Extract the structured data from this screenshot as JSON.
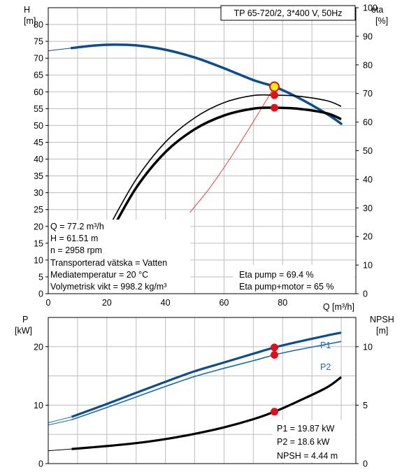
{
  "title": "TP 65-720/2, 3*400 V, 50Hz",
  "top_axes": {
    "left_label": "H",
    "left_unit": "[m]",
    "right_label": "eta",
    "right_unit": "[%]",
    "x_label": "Q [m³/h]"
  },
  "bottom_axes": {
    "left_label": "P",
    "left_unit": "[kW]",
    "right_label": "NPSH",
    "right_unit": "[m]"
  },
  "operating_point_info": [
    "Q = 77.2 m³/h",
    "H = 61.51 m",
    "n = 2958 rpm",
    "Transporterad vätska = Vatten",
    "Mediatemperatur = 20 °C",
    "Volymetrisk vikt = 998.2 kg/m³"
  ],
  "eta_info": [
    "Eta pump = 69.4 %",
    "Eta pump+motor = 65 %"
  ],
  "power_info": [
    "P1 = 19.87 kW",
    "P2 = 18.6 kW",
    "NPSH = 4.44 m"
  ],
  "colors": {
    "head": "#0d4d8c",
    "power": "#1a6aa8",
    "marker": "#e0101a",
    "system": "#e8403a",
    "grid": "#bdbdbd"
  },
  "chart_data": [
    {
      "type": "line",
      "title": "",
      "xlabel": "Q [m³/h]",
      "ylabel": "H [m]",
      "y2label": "eta [%]",
      "xlim": [
        0,
        105
      ],
      "ylim": [
        0,
        85
      ],
      "y2lim": [
        0,
        100
      ],
      "x_ticks": [
        0,
        20,
        40,
        60,
        80
      ],
      "y_ticks": [
        0,
        5,
        10,
        15,
        20,
        25,
        30,
        35,
        40,
        45,
        50,
        55,
        60,
        65,
        70,
        75,
        80
      ],
      "y2_ticks": [
        0,
        10,
        20,
        30,
        40,
        50,
        60,
        70,
        80,
        90,
        100
      ],
      "grid": true,
      "series": [
        {
          "name": "H",
          "axis": "left",
          "x": [
            0,
            8,
            15,
            22,
            30,
            40,
            50,
            60,
            70,
            77.2,
            85,
            95,
            100
          ],
          "y": [
            72.2,
            73.0,
            73.7,
            74.0,
            73.8,
            72.5,
            70.2,
            67.0,
            63.5,
            61.51,
            58.4,
            53.5,
            50.5
          ]
        },
        {
          "name": "eta pump",
          "axis": "right",
          "x": [
            20,
            30,
            40,
            50,
            60,
            70,
            77.2,
            85,
            95,
            100
          ],
          "y": [
            22,
            40,
            53,
            61.5,
            66.8,
            69.3,
            69.4,
            69.1,
            67.5,
            65.5
          ]
        },
        {
          "name": "eta pump+motor",
          "axis": "right",
          "x": [
            20,
            30,
            40,
            50,
            60,
            70,
            77.2,
            85,
            95,
            100
          ],
          "y": [
            19,
            37,
            49.5,
            57.5,
            62.3,
            64.7,
            65,
            64.7,
            63.1,
            61.0
          ]
        },
        {
          "name": "system curve",
          "axis": "left",
          "x": [
            48.3,
            55,
            62,
            70,
            77.2
          ],
          "y": [
            24.1,
            31.3,
            40.1,
            51.1,
            61.51
          ]
        }
      ],
      "operating_point": {
        "x": 77.2,
        "H": 61.51,
        "eta_pump": 69.4,
        "eta_pump_motor": 65
      }
    },
    {
      "type": "line",
      "title": "",
      "xlabel": "Q [m³/h]",
      "ylabel": "P [kW]",
      "y2label": "NPSH [m]",
      "xlim": [
        0,
        105
      ],
      "ylim": [
        0,
        25
      ],
      "y2lim": [
        0,
        12.5
      ],
      "y_ticks": [
        0,
        10,
        20
      ],
      "y2_ticks": [
        0,
        5,
        10
      ],
      "grid": true,
      "series": [
        {
          "name": "P1",
          "axis": "left",
          "x": [
            0,
            8,
            20,
            30,
            40,
            50,
            60,
            70,
            77.2,
            85,
            95,
            100
          ],
          "y": [
            7.0,
            8.0,
            10.2,
            12.1,
            14.0,
            15.8,
            17.3,
            18.8,
            19.87,
            20.8,
            21.9,
            22.4
          ]
        },
        {
          "name": "P2",
          "axis": "left",
          "x": [
            0,
            8,
            20,
            30,
            40,
            50,
            60,
            70,
            77.2,
            85,
            95,
            100
          ],
          "y": [
            6.6,
            7.5,
            9.6,
            11.4,
            13.2,
            14.9,
            16.3,
            17.6,
            18.6,
            19.45,
            20.4,
            20.9
          ]
        },
        {
          "name": "NPSH",
          "axis": "right",
          "x": [
            0,
            8,
            20,
            30,
            40,
            50,
            60,
            70,
            77.2,
            85,
            95,
            100
          ],
          "y": [
            1.1,
            1.25,
            1.5,
            1.75,
            2.1,
            2.55,
            3.1,
            3.8,
            4.44,
            5.3,
            6.5,
            7.4
          ]
        }
      ],
      "operating_point": {
        "x": 77.2,
        "P1": 19.87,
        "P2": 18.6,
        "NPSH": 4.44
      }
    }
  ]
}
